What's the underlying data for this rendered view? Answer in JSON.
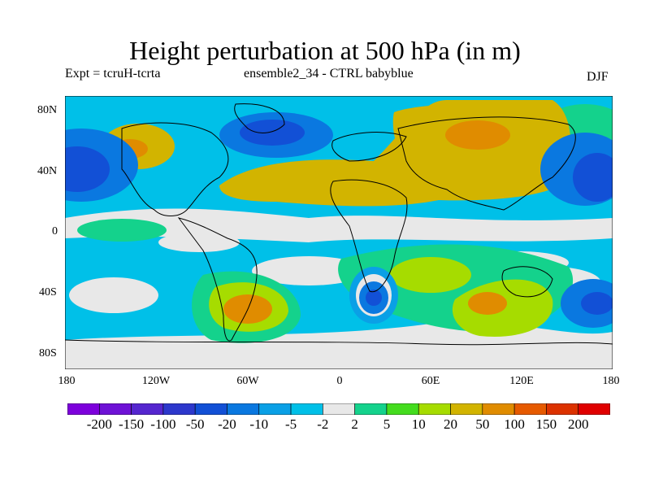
{
  "header": {
    "title": "Height perturbation at 500 hPa (in m)",
    "experiment": "Expt = tcruH-tcrta",
    "ensemble": "ensemble2_34 - CTRL babyblue",
    "season": "DJF"
  },
  "map": {
    "projection": "cylindrical equidistant",
    "lat_labels": [
      "80N",
      "40N",
      "0",
      "40S",
      "80S"
    ],
    "lon_labels": [
      "180",
      "120W",
      "60W",
      "0",
      "60E",
      "120E",
      "180"
    ],
    "lat_range": [
      -90,
      90
    ],
    "lon_range": [
      -180,
      180
    ],
    "features": [
      "coastlines",
      "filled-contours"
    ]
  },
  "colorbar": {
    "labels": [
      "-200",
      "-150",
      "-100",
      "-50",
      "-20",
      "-10",
      "-5",
      "-2",
      "2",
      "5",
      "10",
      "20",
      "50",
      "100",
      "150",
      "200"
    ],
    "colors": [
      "#7d00dc",
      "#6e12d6",
      "#5526cf",
      "#2d38cc",
      "#1250d6",
      "#0a78e0",
      "#0aa0e6",
      "#00c0e8",
      "#e8e8e8",
      "#14d28c",
      "#44dc1e",
      "#a6dc00",
      "#d2b400",
      "#e08c00",
      "#e65a00",
      "#dc3200",
      "#e00000"
    ]
  }
}
